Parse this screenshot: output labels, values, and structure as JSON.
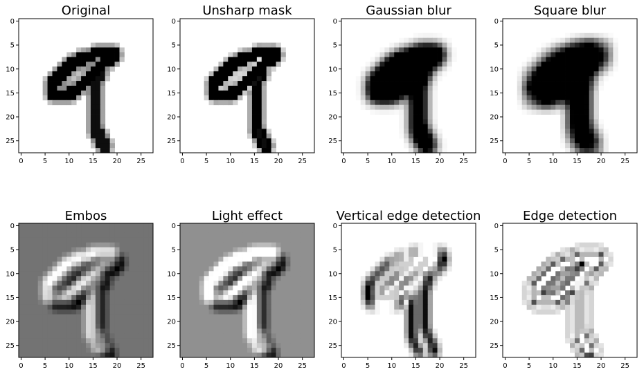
{
  "figure": {
    "panels": [
      {
        "title": "Original"
      },
      {
        "title": "Unsharp mask"
      },
      {
        "title": "Gaussian blur"
      },
      {
        "title": "Square blur"
      },
      {
        "title": "Embos"
      },
      {
        "title": "Light effect"
      },
      {
        "title": "Vertical edge detection"
      },
      {
        "title": "Edge detection"
      }
    ]
  },
  "chart_data": [
    {
      "type": "heatmap",
      "title": "Original",
      "grid": false,
      "xlim": [
        -0.5,
        27.5
      ],
      "ylim": [
        27.5,
        -0.5
      ],
      "xticks": [
        0,
        5,
        10,
        15,
        20,
        25
      ],
      "yticks": [
        0,
        5,
        10,
        15,
        20,
        25
      ],
      "colormap": "gray_r",
      "background": "#ffffff"
    },
    {
      "type": "heatmap",
      "title": "Unsharp mask",
      "grid": false,
      "xlim": [
        -0.5,
        27.5
      ],
      "ylim": [
        27.5,
        -0.5
      ],
      "xticks": [
        0,
        5,
        10,
        15,
        20,
        25
      ],
      "yticks": [
        0,
        5,
        10,
        15,
        20,
        25
      ],
      "colormap": "gray_r",
      "background": "#ffffff"
    },
    {
      "type": "heatmap",
      "title": "Gaussian blur",
      "grid": false,
      "xlim": [
        -0.5,
        27.5
      ],
      "ylim": [
        27.5,
        -0.5
      ],
      "xticks": [
        0,
        5,
        10,
        15,
        20,
        25
      ],
      "yticks": [
        0,
        5,
        10,
        15,
        20,
        25
      ],
      "colormap": "gray_r",
      "background": "#ffffff"
    },
    {
      "type": "heatmap",
      "title": "Square blur",
      "grid": false,
      "xlim": [
        -0.5,
        27.5
      ],
      "ylim": [
        27.5,
        -0.5
      ],
      "xticks": [
        0,
        5,
        10,
        15,
        20,
        25
      ],
      "yticks": [
        0,
        5,
        10,
        15,
        20,
        25
      ],
      "colormap": "gray_r",
      "background": "#ffffff"
    },
    {
      "type": "heatmap",
      "title": "Embos",
      "grid": false,
      "xlim": [
        -0.5,
        27.5
      ],
      "ylim": [
        27.5,
        -0.5
      ],
      "xticks": [
        0,
        5,
        10,
        15,
        20,
        25
      ],
      "yticks": [
        0,
        5,
        10,
        15,
        20,
        25
      ],
      "colormap": "gray_r",
      "background": "#808080"
    },
    {
      "type": "heatmap",
      "title": "Light effect",
      "grid": false,
      "xlim": [
        -0.5,
        27.5
      ],
      "ylim": [
        27.5,
        -0.5
      ],
      "xticks": [
        0,
        5,
        10,
        15,
        20,
        25
      ],
      "yticks": [
        0,
        5,
        10,
        15,
        20,
        25
      ],
      "colormap": "gray_r",
      "background": "#666666"
    },
    {
      "type": "heatmap",
      "title": "Vertical edge detection",
      "grid": false,
      "xlim": [
        -0.5,
        27.5
      ],
      "ylim": [
        27.5,
        -0.5
      ],
      "xticks": [
        0,
        5,
        10,
        15,
        20,
        25
      ],
      "yticks": [
        0,
        5,
        10,
        15,
        20,
        25
      ],
      "colormap": "gray_r",
      "background": "#ffffff"
    },
    {
      "type": "heatmap",
      "title": "Edge detection",
      "grid": false,
      "xlim": [
        -0.5,
        27.5
      ],
      "ylim": [
        27.5,
        -0.5
      ],
      "xticks": [
        0,
        5,
        10,
        15,
        20,
        25
      ],
      "yticks": [
        0,
        5,
        10,
        15,
        20,
        25
      ],
      "colormap": "gray_r",
      "background": "#ffffff"
    }
  ]
}
